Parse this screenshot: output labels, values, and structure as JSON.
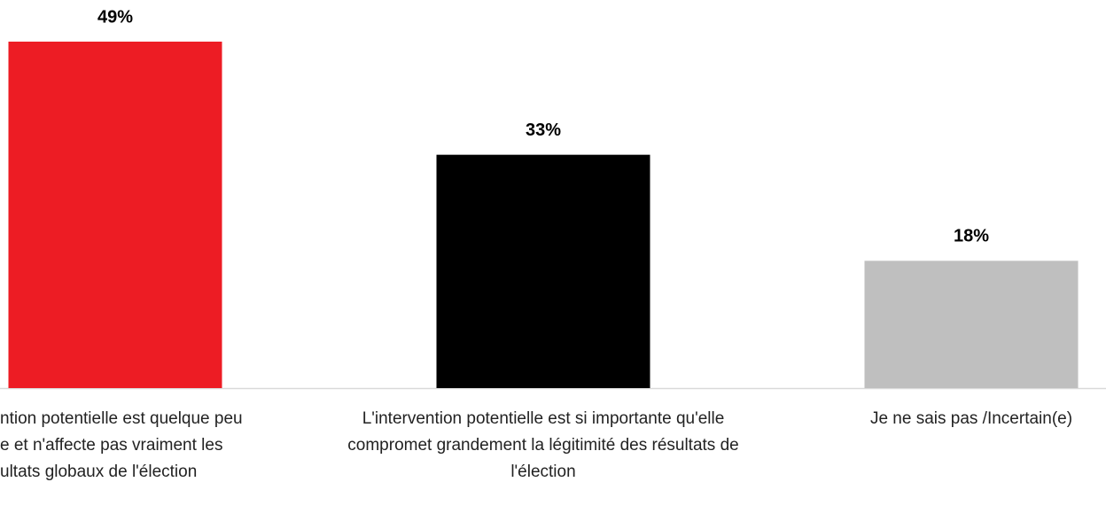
{
  "chart_data": {
    "type": "bar",
    "categories": [
      "ntion potentielle est quelque peu\ne et n'affecte pas vraiment les\nultats globaux de l'élection",
      "L'intervention potentielle est si importante qu'elle compromet grandement la légitimité des résultats de l'élection",
      "Je ne sais pas /Incertain(e)"
    ],
    "values": [
      49,
      33,
      18
    ],
    "value_labels": [
      "49%",
      "33%",
      "18%"
    ],
    "colors": [
      "#ed1c24",
      "#000000",
      "#bfbfbf"
    ]
  }
}
